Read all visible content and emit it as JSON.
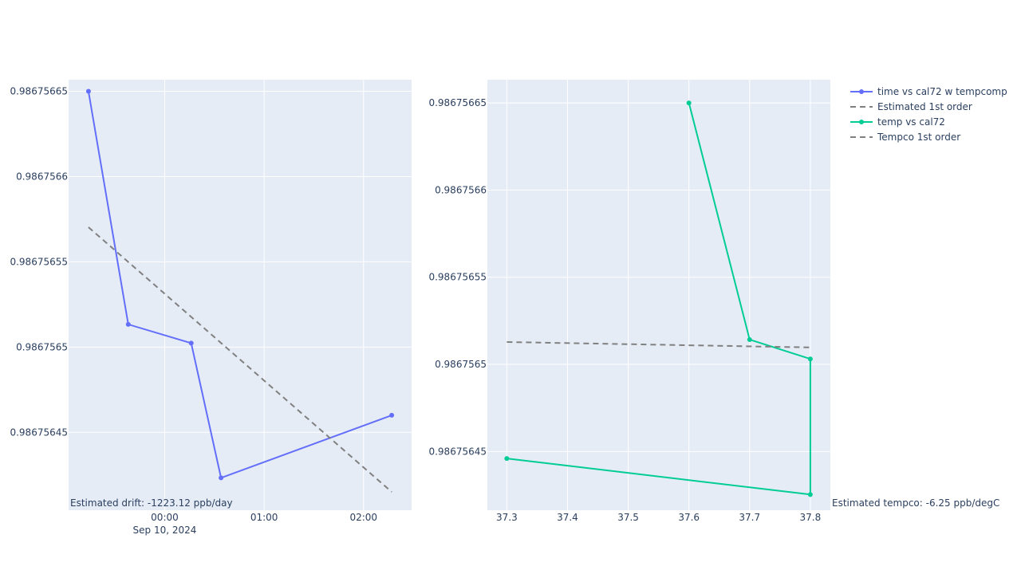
{
  "chart_data": [
    {
      "type": "line",
      "x_axis": {
        "kind": "date",
        "range": [
          "2024-09-09T23:02:00",
          "2024-09-10T02:29:00"
        ],
        "ticks": [
          {
            "value": "2024-09-10T00:00:00",
            "label": "00:00",
            "sublabel": "Sep 10, 2024"
          },
          {
            "value": "2024-09-10T01:00:00",
            "label": "01:00"
          },
          {
            "value": "2024-09-10T02:00:00",
            "label": "02:00"
          }
        ]
      },
      "y_axis": {
        "range": [
          0.9867564043,
          0.9867566568
        ],
        "ticks": [
          {
            "value": 0.98675645,
            "label": "0.98675645"
          },
          {
            "value": 0.9867565,
            "label": "0.9867565"
          },
          {
            "value": 0.98675655,
            "label": "0.98675655"
          },
          {
            "value": 0.9867566,
            "label": "0.9867566"
          },
          {
            "value": 0.98675665,
            "label": "0.98675665"
          }
        ]
      },
      "grid": true,
      "series": [
        {
          "name": "time vs cal72 w tempcomp",
          "color": "#636efa",
          "mode": "lines+markers",
          "dash": "solid",
          "x": [
            "2024-09-09T23:14:00",
            "2024-09-09T23:38:00",
            "2024-09-10T00:16:00",
            "2024-09-10T00:34:00",
            "2024-09-10T02:17:00"
          ],
          "y": [
            0.98675665,
            0.9867565133,
            0.9867565023,
            0.9867564233,
            0.98675646
          ]
        },
        {
          "name": "Estimated 1st order",
          "color": "#808080",
          "mode": "lines",
          "dash": "dash",
          "x": [
            "2024-09-09T23:14:00",
            "2024-09-10T02:17:00"
          ],
          "y": [
            0.9867565703,
            0.986756415
          ]
        }
      ],
      "annotations": [
        {
          "text": "Estimated drift:  -1223.12 ppb/day"
        }
      ]
    },
    {
      "type": "line",
      "x_axis": {
        "kind": "linear",
        "range": [
          37.268,
          37.833
        ],
        "ticks": [
          {
            "value": 37.3,
            "label": "37.3"
          },
          {
            "value": 37.4,
            "label": "37.4"
          },
          {
            "value": 37.5,
            "label": "37.5"
          },
          {
            "value": 37.6,
            "label": "37.6"
          },
          {
            "value": 37.7,
            "label": "37.7"
          },
          {
            "value": 37.8,
            "label": "37.8"
          }
        ]
      },
      "y_axis": {
        "range": [
          0.9867564163,
          0.9867566633
        ],
        "ticks": [
          {
            "value": 0.98675645,
            "label": "0.98675645"
          },
          {
            "value": 0.9867565,
            "label": "0.9867565"
          },
          {
            "value": 0.98675655,
            "label": "0.98675655"
          },
          {
            "value": 0.9867566,
            "label": "0.9867566"
          },
          {
            "value": 0.98675665,
            "label": "0.98675665"
          }
        ]
      },
      "grid": true,
      "series": [
        {
          "name": "temp vs cal72",
          "color": "#00cc96",
          "mode": "lines+markers",
          "dash": "solid",
          "x": [
            37.6,
            37.7,
            37.8,
            37.8,
            37.3
          ],
          "y": [
            0.98675665,
            0.9867565142,
            0.9867565031,
            0.9867564253,
            0.986756446
          ]
        },
        {
          "name": "Tempco 1st order",
          "color": "#808080",
          "mode": "lines",
          "dash": "dash",
          "x": [
            37.3,
            37.8
          ],
          "y": [
            0.9867565128,
            0.9867565097
          ]
        }
      ],
      "annotations": [
        {
          "text": "Estimated tempco:  -6.25 ppb/degC"
        }
      ]
    }
  ],
  "legend": {
    "placement": "top-right",
    "entries": [
      {
        "label": "time vs cal72 w tempcomp",
        "color": "#636efa",
        "dash": "solid",
        "marker": true
      },
      {
        "label": "Estimated 1st order",
        "color": "#808080",
        "dash": "dash",
        "marker": false
      },
      {
        "label": "temp vs cal72",
        "color": "#00cc96",
        "dash": "solid",
        "marker": true
      },
      {
        "label": "Tempco 1st order",
        "color": "#808080",
        "dash": "dash",
        "marker": false
      }
    ]
  },
  "colors": {
    "plot_background": "#e5ecf6",
    "grid": "#ffffff",
    "text": "#2a3f5f"
  }
}
